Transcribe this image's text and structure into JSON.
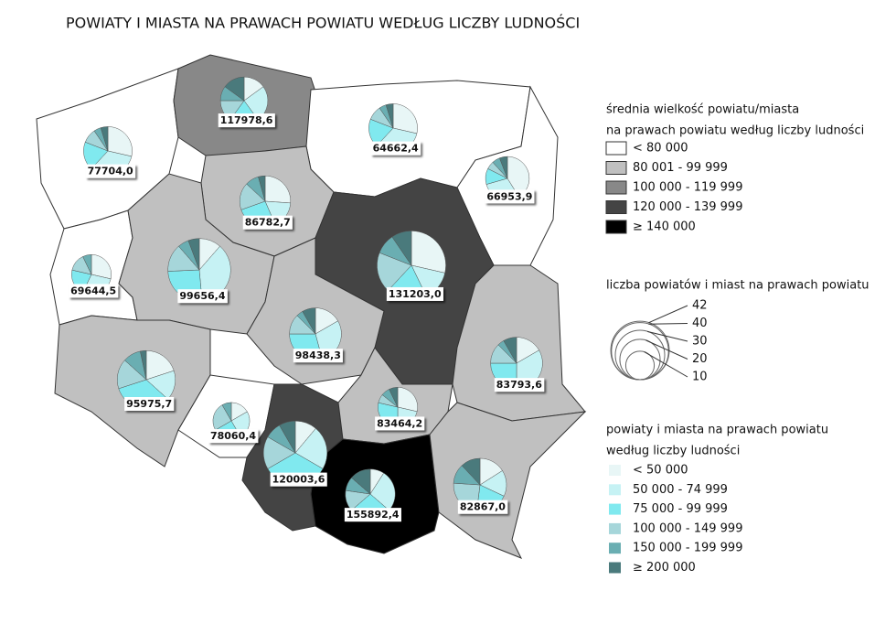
{
  "title": "POWIATY I MIASTA NA PRAWACH POWIATU WEDŁUG LICZBY LUDNOŚCI",
  "legend_average": {
    "title_lines": [
      "średnia wielkość powiatu/miasta",
      "na prawach powiatu według liczby ludności"
    ],
    "items": [
      {
        "label": "< 80 000",
        "color": "#ffffff"
      },
      {
        "label": "80 001 - 99 999",
        "color": "#c0c0c0"
      },
      {
        "label": "100 000 - 119 999",
        "color": "#888888"
      },
      {
        "label": "120 000 - 139 999",
        "color": "#444444"
      },
      {
        "label": "≥ 140 000",
        "color": "#000000"
      }
    ]
  },
  "legend_size": {
    "title": "liczba powiatów i miast na prawach powiatu",
    "values": [
      42,
      40,
      30,
      20,
      10
    ]
  },
  "legend_population": {
    "title_lines": [
      "powiaty i miasta na prawach powiatu",
      "według liczby ludności"
    ],
    "items": [
      {
        "label": "< 50 000",
        "color": "#e8f6f6"
      },
      {
        "label": "50 000 - 74 999",
        "color": "#c6f2f4"
      },
      {
        "label": "75 000 - 99 999",
        "color": "#80e9ef"
      },
      {
        "label": "100 000 - 149 999",
        "color": "#a6d6da"
      },
      {
        "label": "150 000 - 199 999",
        "color": "#6aaeb2"
      },
      {
        "label": "≥ 200 000",
        "color": "#4a7a7c"
      }
    ]
  },
  "regions": [
    {
      "label": "77704,0",
      "fill_class": 0,
      "counts": [
        6,
        7,
        4,
        2,
        1,
        1
      ]
    },
    {
      "label": "117978,6",
      "fill_class": 2,
      "counts": [
        3,
        5,
        4,
        3,
        2,
        3
      ]
    },
    {
      "label": "64662,4",
      "fill_class": 0,
      "counts": [
        6,
        7,
        4,
        2,
        1,
        1
      ]
    },
    {
      "label": "66953,9",
      "fill_class": 0,
      "counts": [
        7,
        5,
        2,
        1,
        1,
        1
      ]
    },
    {
      "label": "69644,5",
      "fill_class": 0,
      "counts": [
        4,
        4,
        3,
        2,
        1,
        0
      ]
    },
    {
      "label": "86782,7",
      "fill_class": 1,
      "counts": [
        6,
        4,
        6,
        4,
        2,
        1
      ]
    },
    {
      "label": "99656,4",
      "fill_class": 1,
      "counts": [
        4,
        13,
        9,
        5,
        2,
        2
      ]
    },
    {
      "label": "131203,0",
      "fill_class": 3,
      "counts": [
        12,
        6,
        8,
        8,
        4,
        4
      ]
    },
    {
      "label": "98438,3",
      "fill_class": 1,
      "counts": [
        4,
        7,
        7,
        3,
        1,
        2
      ]
    },
    {
      "label": "83793,6",
      "fill_class": 1,
      "counts": [
        4,
        8,
        6,
        3,
        1,
        2
      ]
    },
    {
      "label": "95975,7",
      "fill_class": 1,
      "counts": [
        6,
        5,
        10,
        5,
        3,
        1
      ]
    },
    {
      "label": "78060,4",
      "fill_class": 0,
      "counts": [
        2,
        3,
        3,
        3,
        1,
        0
      ]
    },
    {
      "label": "120003,6",
      "fill_class": 3,
      "counts": [
        4,
        8,
        12,
        6,
        3,
        3
      ]
    },
    {
      "label": "83464,2",
      "fill_class": 1,
      "counts": [
        4,
        3,
        4,
        1,
        1,
        1
      ]
    },
    {
      "label": "155892,4",
      "fill_class": 4,
      "counts": [
        2,
        6,
        6,
        3,
        2,
        3
      ]
    },
    {
      "label": "82867,0",
      "fill_class": 1,
      "counts": [
        4,
        4,
        5,
        6,
        3,
        3
      ]
    }
  ]
}
